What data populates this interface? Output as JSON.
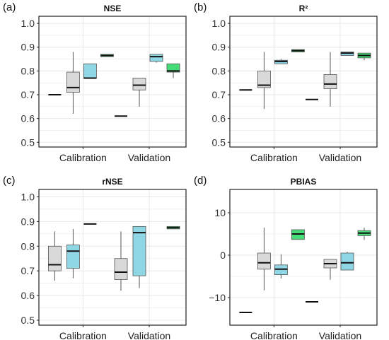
{
  "colors": {
    "gray": "#d9d9d9",
    "blue": "#90d7e6",
    "green": "#46dc78",
    "line": "#555555",
    "grid": "#e8e8e8",
    "border": "#222222"
  },
  "chart_data": [
    {
      "type": "box",
      "label": "(a)",
      "title": "NSE",
      "categories": [
        "Calibration",
        "Validation"
      ],
      "ylim": [
        0.48,
        1.03
      ],
      "yticks": [
        0.5,
        0.6,
        0.7,
        0.8,
        0.9,
        1.0
      ],
      "ytick_labels": [
        "0.5",
        "0.6",
        "0.7",
        "0.8",
        "0.9",
        "1.0"
      ],
      "grid": true,
      "series": [
        {
          "color": "none",
          "values": [
            {
              "min": 0.7,
              "q1": 0.7,
              "median": 0.7,
              "q3": 0.7,
              "max": 0.7
            },
            {
              "min": 0.61,
              "q1": 0.61,
              "median": 0.61,
              "q3": 0.61,
              "max": 0.61
            }
          ]
        },
        {
          "color": "gray",
          "values": [
            {
              "min": 0.62,
              "q1": 0.71,
              "median": 0.73,
              "q3": 0.795,
              "max": 0.88
            },
            {
              "min": 0.65,
              "q1": 0.72,
              "median": 0.74,
              "q3": 0.77,
              "max": 0.77
            }
          ]
        },
        {
          "color": "blue",
          "values": [
            {
              "min": 0.77,
              "q1": 0.77,
              "median": 0.77,
              "q3": 0.83,
              "max": 0.83
            },
            {
              "min": 0.835,
              "q1": 0.84,
              "median": 0.86,
              "q3": 0.87,
              "max": 0.87
            }
          ]
        },
        {
          "color": "green",
          "values": [
            {
              "min": 0.86,
              "q1": 0.86,
              "median": 0.865,
              "q3": 0.87,
              "max": 0.87
            },
            {
              "min": 0.77,
              "q1": 0.795,
              "median": 0.8,
              "q3": 0.83,
              "max": 0.83
            }
          ]
        }
      ]
    },
    {
      "type": "box",
      "label": "(b)",
      "title": "R²",
      "categories": [
        "Calibration",
        "Validation"
      ],
      "ylim": [
        0.48,
        1.03
      ],
      "yticks": [
        0.5,
        0.6,
        0.7,
        0.8,
        0.9,
        1.0
      ],
      "ytick_labels": [
        "0.5",
        "0.6",
        "0.7",
        "0.8",
        "0.9",
        "1.0"
      ],
      "grid": true,
      "series": [
        {
          "color": "none",
          "values": [
            {
              "min": 0.72,
              "q1": 0.72,
              "median": 0.72,
              "q3": 0.72,
              "max": 0.72
            },
            {
              "min": 0.68,
              "q1": 0.68,
              "median": 0.68,
              "q3": 0.68,
              "max": 0.68
            }
          ]
        },
        {
          "color": "gray",
          "values": [
            {
              "min": 0.64,
              "q1": 0.73,
              "median": 0.74,
              "q3": 0.8,
              "max": 0.88
            },
            {
              "min": 0.65,
              "q1": 0.725,
              "median": 0.745,
              "q3": 0.785,
              "max": 0.88
            }
          ]
        },
        {
          "color": "blue",
          "values": [
            {
              "min": 0.83,
              "q1": 0.83,
              "median": 0.84,
              "q3": 0.845,
              "max": 0.85
            },
            {
              "min": 0.865,
              "q1": 0.865,
              "median": 0.875,
              "q3": 0.88,
              "max": 0.88
            }
          ]
        },
        {
          "color": "green",
          "values": [
            {
              "min": 0.88,
              "q1": 0.88,
              "median": 0.885,
              "q3": 0.89,
              "max": 0.89
            },
            {
              "min": 0.845,
              "q1": 0.855,
              "median": 0.865,
              "q3": 0.875,
              "max": 0.875
            }
          ]
        }
      ]
    },
    {
      "type": "box",
      "label": "(c)",
      "title": "rNSE",
      "categories": [
        "Calibration",
        "Validation"
      ],
      "ylim": [
        0.48,
        1.03
      ],
      "yticks": [
        0.5,
        0.6,
        0.7,
        0.8,
        0.9,
        1.0
      ],
      "ytick_labels": [
        "0.5",
        "0.6",
        "0.7",
        "0.8",
        "0.9",
        "1.0"
      ],
      "grid": true,
      "series": [
        {
          "color": "gray",
          "values": [
            {
              "min": 0.66,
              "q1": 0.7,
              "median": 0.725,
              "q3": 0.8,
              "max": 0.86
            },
            {
              "min": 0.62,
              "q1": 0.665,
              "median": 0.695,
              "q3": 0.75,
              "max": 0.86
            }
          ]
        },
        {
          "color": "blue",
          "values": [
            {
              "min": 0.67,
              "q1": 0.71,
              "median": 0.78,
              "q3": 0.805,
              "max": 0.87
            },
            {
              "min": 0.63,
              "q1": 0.68,
              "median": 0.855,
              "q3": 0.88,
              "max": 0.88
            }
          ]
        },
        {
          "color": "none",
          "values": [
            {
              "min": 0.89,
              "q1": 0.89,
              "median": 0.89,
              "q3": 0.89,
              "max": 0.89
            },
            null
          ]
        },
        {
          "color": "green",
          "values": [
            null,
            {
              "min": 0.87,
              "q1": 0.87,
              "median": 0.875,
              "q3": 0.88,
              "max": 0.88
            }
          ]
        }
      ]
    },
    {
      "type": "box",
      "label": "(d)",
      "title": "PBIAS",
      "categories": [
        "Calibration",
        "Validation"
      ],
      "ylim": [
        -16.5,
        15.5
      ],
      "yticks": [
        -10,
        0,
        10
      ],
      "ytick_labels": [
        "−10",
        "0",
        "10"
      ],
      "grid": true,
      "series": [
        {
          "color": "none",
          "values": [
            {
              "min": -13.5,
              "q1": -13.5,
              "median": -13.5,
              "q3": -13.5,
              "max": -13.5
            },
            {
              "min": -11.0,
              "q1": -11.0,
              "median": -11.0,
              "q3": -11.0,
              "max": -11.0
            }
          ]
        },
        {
          "color": "gray",
          "values": [
            {
              "min": -8.3,
              "q1": -3.3,
              "median": -1.8,
              "q3": 0.5,
              "max": 6.5
            },
            {
              "min": -5.8,
              "q1": -3.0,
              "median": -2.0,
              "q3": -1.0,
              "max": -1.0
            }
          ]
        },
        {
          "color": "blue",
          "values": [
            {
              "min": -5.5,
              "q1": -4.6,
              "median": -3.3,
              "q3": -2.3,
              "max": 0.2
            },
            {
              "min": -3.5,
              "q1": -3.5,
              "median": -1.8,
              "q3": 0.5,
              "max": 0.8
            }
          ]
        },
        {
          "color": "green",
          "values": [
            {
              "min": 3.7,
              "q1": 3.7,
              "median": 5.0,
              "q3": 6.0,
              "max": 6.0
            },
            {
              "min": 3.6,
              "q1": 4.6,
              "median": 5.2,
              "q3": 5.8,
              "max": 6.5
            }
          ]
        }
      ]
    }
  ]
}
